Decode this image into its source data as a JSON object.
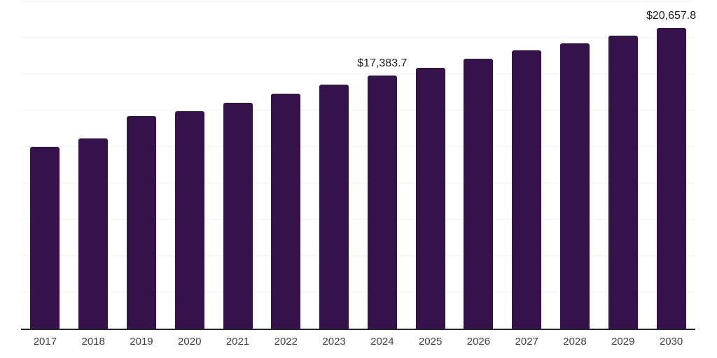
{
  "chart_data": {
    "type": "bar",
    "title": "",
    "xlabel": "",
    "ylabel": "",
    "categories": [
      "2017",
      "2018",
      "2019",
      "2020",
      "2021",
      "2022",
      "2023",
      "2024",
      "2025",
      "2026",
      "2027",
      "2028",
      "2029",
      "2030"
    ],
    "values": [
      12495,
      13070,
      14620,
      14940,
      15545,
      16140,
      16775,
      17383.7,
      17940,
      18535,
      19125,
      19640,
      20165,
      20657.8
    ],
    "data_labels": {
      "2024": "$17,383.7",
      "2030": "$20,657.8"
    },
    "ylim": [
      0,
      22500
    ],
    "gridline_step": 2500,
    "grid": "horizontal",
    "y_tick_labels_visible": false,
    "legend": "none",
    "colors": {
      "bar": "#36124A",
      "axis_line": "#262626",
      "gridline": "#f2f2f2",
      "data_label": "#1a1a1a",
      "tick_label": "#404040",
      "background": "#ffffff"
    }
  }
}
